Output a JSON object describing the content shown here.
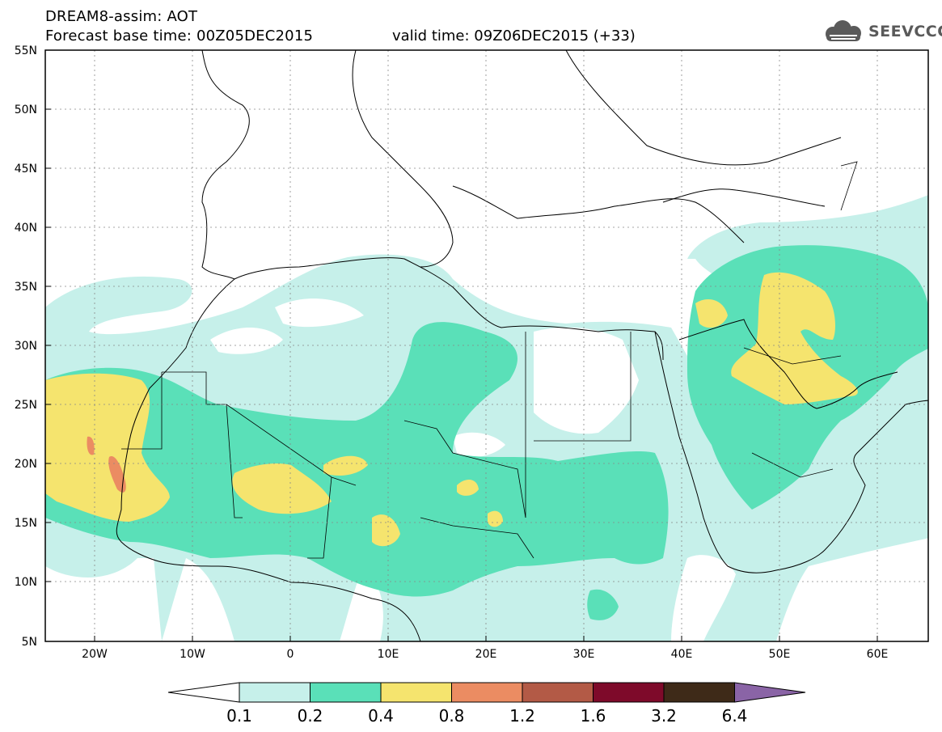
{
  "title": {
    "line1": "DREAM8-assim: AOT",
    "line2": "Forecast base time: 00Z05DEC2015",
    "valid": "valid time: 09Z06DEC2015 (+33)"
  },
  "logo": {
    "text": "SEEVCCC",
    "icon": "cloud-logo-icon",
    "color": "#5a5a5a"
  },
  "map": {
    "lon_range": [
      -25,
      65
    ],
    "lat_range": [
      5,
      55
    ],
    "lat_ticks": [
      "55N",
      "50N",
      "45N",
      "40N",
      "35N",
      "30N",
      "25N",
      "20N",
      "15N",
      "10N",
      "5N"
    ],
    "lon_ticks": [
      "20W",
      "10W",
      "0",
      "10E",
      "20E",
      "30E",
      "40E",
      "50E",
      "60E"
    ]
  },
  "colorbar": {
    "labels": [
      "0.1",
      "0.2",
      "0.4",
      "0.8",
      "1.2",
      "1.6",
      "3.2",
      "6.4"
    ],
    "colors": [
      "#ffffff",
      "#c6f0ea",
      "#5ae0b8",
      "#f5e46e",
      "#eb8c62",
      "#b35a46",
      "#7e0a2a",
      "#3e2a18",
      "#8a64a6"
    ]
  }
}
